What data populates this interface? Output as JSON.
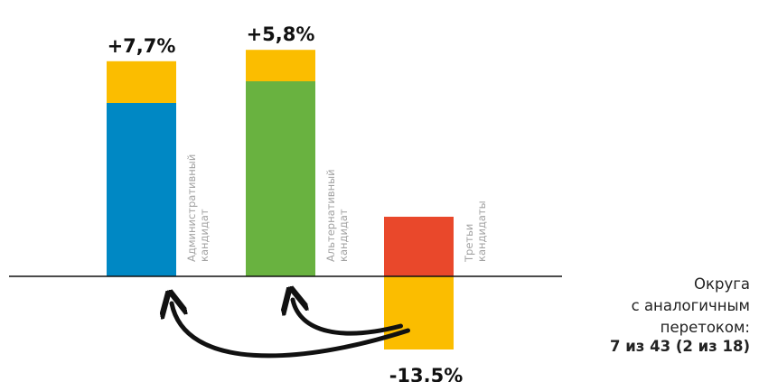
{
  "chart_data": {
    "type": "bar",
    "stacked": true,
    "grid": false,
    "legend": "none",
    "categories": [
      "Административный кандидат",
      "Альтернативный кандидат",
      "Третьи кандидаты"
    ],
    "category_label_lines": [
      [
        "Административный",
        "кандидат"
      ],
      [
        "Альтернативный",
        "кандидат"
      ],
      [
        "Третьи",
        "кандидаты"
      ]
    ],
    "series": [
      {
        "color": "#0088c4",
        "values": [
          32,
          36,
          11
        ]
      },
      {
        "color": "#fbbd00",
        "values": [
          7.7,
          5.8,
          -13.5
        ]
      }
    ],
    "category_colors": [
      "#0088c4",
      "#69b240",
      "#e9482b"
    ],
    "change_labels": [
      "+7,7%",
      "+5,8%",
      "-13,5%"
    ],
    "ylim": [
      -13.5,
      40
    ],
    "arrows": [
      {
        "from": "Третьи кандидаты",
        "to": "Административный кандидат"
      },
      {
        "from": "Третьи кандидаты",
        "to": "Альтернативный кандидат"
      }
    ]
  },
  "side_caption": [
    "Округа",
    "с аналогичным",
    "перетоком:"
  ],
  "side_count": "7 из 43 (2 из 18)",
  "colors": {
    "flow": "#fbbd00",
    "axis": "#111111",
    "arrow": "#111111"
  }
}
